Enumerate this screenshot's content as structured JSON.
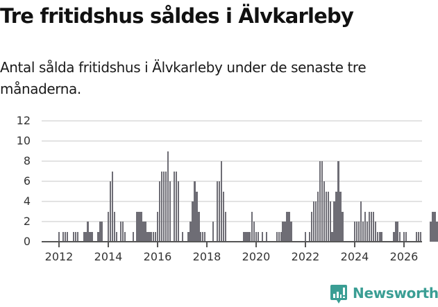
{
  "header": {
    "title": "Tre fritidshus såldes i Älvkarleby",
    "subtitle": "Antal sålda fritidshus i Älvkarleby under de senaste tre månaderna."
  },
  "brand": {
    "name": "Newsworthy",
    "color": "#3a9e94"
  },
  "colors": {
    "bar": "#6e6d75",
    "highlight": "#13a89e",
    "grid": "#e3e3e3"
  },
  "chart_data": {
    "type": "bar",
    "title": "Tre fritidshus såldes i Älvkarleby",
    "subtitle": "Antal sålda fritidshus i Älvkarleby under de senaste tre månaderna.",
    "xlabel": "",
    "ylabel": "",
    "ylim": [
      0,
      12
    ],
    "yticks": [
      0,
      2,
      4,
      6,
      8,
      10,
      12
    ],
    "xticks": [
      "2012",
      "2014",
      "2016",
      "2018",
      "2020",
      "2022",
      "2024",
      "2026"
    ],
    "grid": true,
    "legend": "none",
    "start": "2012-01",
    "frequency": "monthly",
    "annotation": {
      "label": "3",
      "target": "last"
    },
    "values": [
      1,
      0,
      1,
      1,
      1,
      0,
      0,
      1,
      1,
      1,
      0,
      0,
      1,
      1,
      2,
      1,
      1,
      0,
      0,
      1,
      2,
      2,
      0,
      0,
      3,
      6,
      7,
      3,
      1,
      0,
      2,
      2,
      1,
      0,
      0,
      0,
      1,
      0,
      3,
      3,
      3,
      2,
      2,
      1,
      1,
      1,
      1,
      1,
      3,
      6,
      7,
      7,
      7,
      9,
      6,
      0,
      7,
      7,
      6,
      0,
      1,
      0,
      0,
      1,
      2,
      4,
      6,
      5,
      3,
      1,
      1,
      1,
      0,
      0,
      0,
      2,
      0,
      6,
      6,
      8,
      5,
      3,
      0,
      0,
      0,
      0,
      0,
      0,
      0,
      0,
      1,
      1,
      1,
      1,
      3,
      2,
      1,
      1,
      0,
      1,
      0,
      1,
      0,
      0,
      0,
      0,
      1,
      1,
      1,
      2,
      2,
      3,
      3,
      2,
      0,
      0,
      0,
      0,
      0,
      0,
      1,
      0,
      1,
      3,
      4,
      4,
      5,
      8,
      8,
      6,
      5,
      5,
      4,
      1,
      4,
      5,
      8,
      5,
      3,
      0,
      0,
      0,
      0,
      0,
      2,
      2,
      2,
      4,
      2,
      3,
      2,
      3,
      3,
      3,
      2,
      1,
      1,
      1,
      0,
      0,
      0,
      0,
      0,
      1,
      2,
      2,
      1,
      0,
      1,
      1,
      0,
      0,
      0,
      0,
      1,
      1,
      1,
      0,
      0,
      0,
      0,
      2,
      3,
      3,
      2,
      1,
      0,
      0,
      1,
      1,
      1,
      1,
      1,
      2,
      3,
      3,
      3,
      2,
      3,
      2,
      2,
      1,
      1,
      0,
      3
    ]
  }
}
